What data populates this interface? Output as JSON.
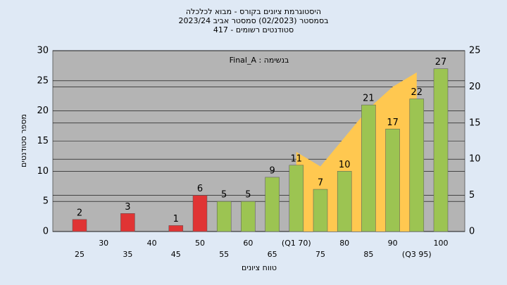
{
  "chart_data": {
    "type": "bar",
    "title": [
      "היסטוגרמת ציונים בקורס - מבוא לכלכלה",
      "בסמסטר  (02/2023)  סמסטר אביב 2023/24",
      "סטודנטים רשומים - 417"
    ],
    "annotation": "Final_A : בנשימה",
    "y_label": "מספר סטודנטים",
    "x_label": "טווח ציונים",
    "categories": [
      "25",
      "30",
      "35",
      "40",
      "45",
      "50",
      "55",
      "60",
      "65",
      "(Q1 70)",
      "75",
      "80",
      "85",
      "90",
      "(Q3 95)",
      "100"
    ],
    "values": [
      2,
      0,
      3,
      0,
      1,
      6,
      5,
      5,
      9,
      11,
      7,
      10,
      21,
      17,
      22,
      27
    ],
    "value_labels": [
      "2",
      null,
      "3",
      null,
      "1",
      "6",
      "5",
      "5",
      "9",
      "11",
      "7",
      "10",
      "21",
      "17",
      "22",
      "27"
    ],
    "colors": [
      "#e03434",
      "#e03434",
      "#e03434",
      "#e03434",
      "#e03434",
      "#e03434",
      "#9cc452",
      "#9cc452",
      "#9cc452",
      "#9cc452",
      "#9cc452",
      "#9cc452",
      "#9cc452",
      "#9cc452",
      "#9cc452",
      "#9cc452"
    ],
    "area": {
      "color": "#ffc850",
      "axis": "y2",
      "values": [
        null,
        null,
        null,
        null,
        null,
        null,
        null,
        null,
        null,
        11,
        9,
        13,
        17,
        20,
        22,
        null
      ]
    },
    "ylim": [
      0,
      30
    ],
    "yticks": [
      0,
      5,
      10,
      15,
      20,
      25,
      30
    ],
    "y2lim": [
      0,
      25
    ],
    "y2ticks": [
      0,
      5,
      10,
      15,
      20,
      25
    ],
    "grid": true
  }
}
